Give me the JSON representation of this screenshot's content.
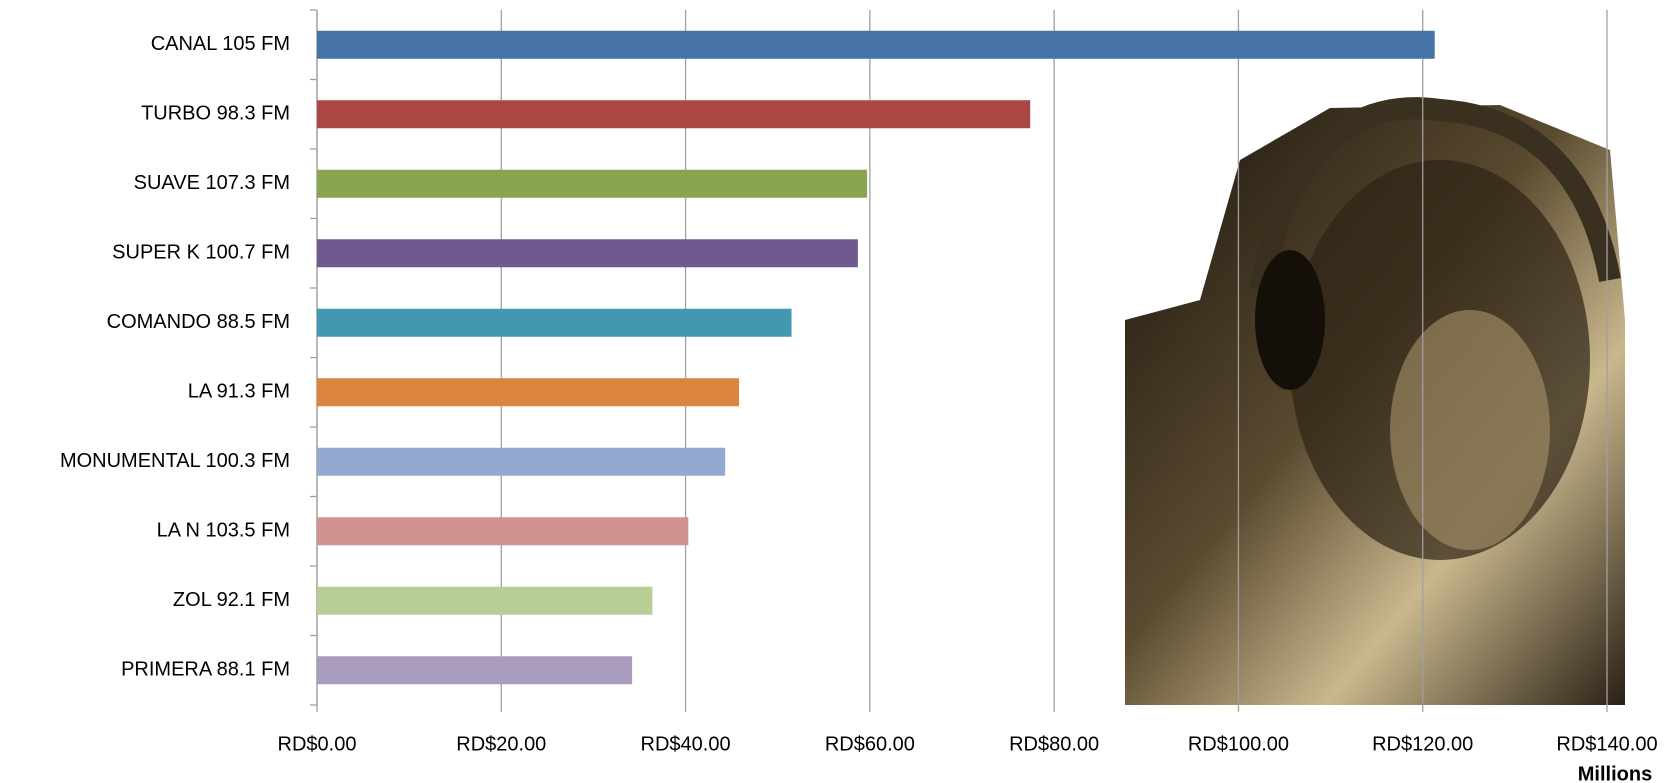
{
  "chart_data": {
    "type": "hbar",
    "categories": [
      "CANAL 105 FM",
      "TURBO 98.3 FM",
      "SUAVE 107.3 FM",
      "SUPER K 100.7 FM",
      "COMANDO 88.5 FM",
      "LA 91.3 FM",
      "MONUMENTAL 100.3 FM",
      "LA N 103.5 FM",
      "ZOL 92.1 FM",
      "PRIMERA 88.1 FM"
    ],
    "values": [
      121.3,
      77.4,
      59.7,
      58.7,
      51.5,
      45.8,
      44.3,
      40.3,
      36.4,
      34.2
    ],
    "colors": [
      "#4572a7",
      "#aa4643",
      "#89a54e",
      "#71588f",
      "#4198af",
      "#db843d",
      "#93a9cf",
      "#d19392",
      "#b9cd96",
      "#a99bbd"
    ],
    "xlim": [
      0,
      140
    ],
    "xticks": [
      {
        "value": 0,
        "label": "RD$0.00"
      },
      {
        "value": 20,
        "label": "RD$20.00"
      },
      {
        "value": 40,
        "label": "RD$40.00"
      },
      {
        "value": 60,
        "label": "RD$60.00"
      },
      {
        "value": 80,
        "label": "RD$80.00"
      },
      {
        "value": 100,
        "label": "RD$100.00"
      },
      {
        "value": 120,
        "label": "RD$120.00"
      },
      {
        "value": 140,
        "label": "RD$140.00"
      }
    ],
    "x_unit_label": "Millions",
    "grid": true
  }
}
